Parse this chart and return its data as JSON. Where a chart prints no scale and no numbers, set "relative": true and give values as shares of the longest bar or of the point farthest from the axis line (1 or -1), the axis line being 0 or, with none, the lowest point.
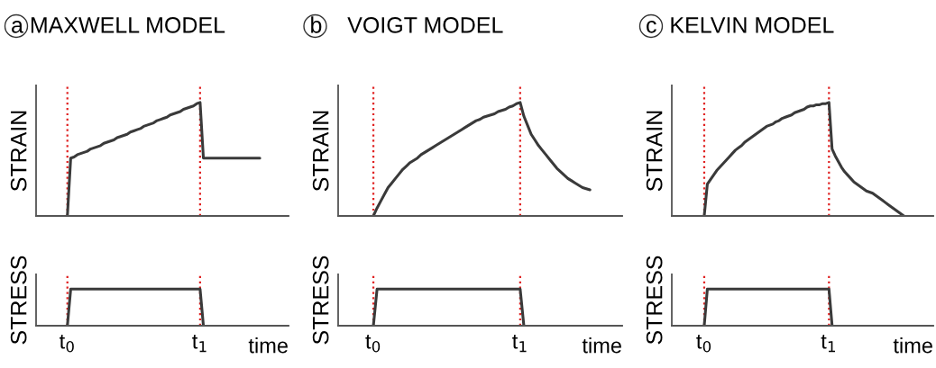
{
  "chart_data": [
    {
      "type": "line",
      "relative": true,
      "title": "a MAXWELL MODEL",
      "ylabel": "STRAIN",
      "tick_labels": false,
      "categories": [
        null,
        null,
        null,
        null,
        null,
        null,
        null,
        null,
        null,
        null,
        null,
        null,
        null,
        null,
        null,
        null,
        null,
        null,
        null,
        null,
        null,
        null,
        null,
        null,
        null,
        null,
        null,
        null,
        null,
        null,
        null,
        null,
        null,
        null,
        null,
        null,
        null,
        null,
        null,
        null,
        null,
        null,
        null,
        null,
        null,
        null,
        null,
        null,
        null,
        null,
        null,
        null,
        null,
        null,
        null,
        null,
        null,
        null,
        null
      ],
      "series": [
        {
          "color": "#3a3a3a",
          "values": [
            0,
            0.51,
            0.52,
            0.54,
            0.55,
            0.56,
            0.57,
            0.59,
            0.6,
            0.61,
            0.62,
            0.64,
            0.65,
            0.66,
            0.67,
            0.69,
            0.7,
            0.71,
            0.72,
            0.74,
            0.75,
            0.76,
            0.77,
            0.79,
            0.8,
            0.81,
            0.82,
            0.84,
            0.85,
            0.86,
            0.87,
            0.89,
            0.9,
            0.91,
            0.92,
            0.94,
            0.95,
            0.96,
            0.97,
            0.99,
            1,
            0.51,
            0.51,
            0.51,
            0.51,
            0.51,
            0.51,
            0.51,
            0.51,
            0.51,
            0.51,
            0.51,
            0.51,
            0.51,
            0.51,
            0.51,
            0.51,
            0.51,
            0.51
          ]
        }
      ]
    },
    {
      "type": "line",
      "relative": true,
      "ylabel": "STRESS",
      "xlabel": "time",
      "tick_labels": "x",
      "categories": [
        "t$_{0}$",
        null,
        null,
        null,
        null,
        null,
        null,
        null,
        null,
        null,
        null,
        null,
        null,
        null,
        null,
        null,
        null,
        null,
        null,
        null,
        null,
        null,
        null,
        null,
        null,
        null,
        null,
        null,
        null,
        null,
        null,
        null,
        null,
        null,
        null,
        null,
        null,
        null,
        null,
        null,
        "t$_{1}$",
        null,
        null,
        null,
        null,
        null,
        null,
        null,
        null,
        null,
        null,
        null,
        null,
        null,
        null,
        null,
        null,
        null,
        null
      ],
      "series": [
        {
          "color": "#3a3a3a",
          "values": [
            0,
            1,
            1,
            1,
            1,
            1,
            1,
            1,
            1,
            1,
            1,
            1,
            1,
            1,
            1,
            1,
            1,
            1,
            1,
            1,
            1,
            1,
            1,
            1,
            1,
            1,
            1,
            1,
            1,
            1,
            1,
            1,
            1,
            1,
            1,
            1,
            1,
            1,
            1,
            1,
            1,
            0,
            null,
            null,
            null,
            null,
            null,
            null,
            null,
            null,
            null,
            null,
            null,
            null,
            null,
            null,
            null,
            null,
            null
          ]
        }
      ]
    },
    {
      "type": "line",
      "relative": true,
      "title": "b    VOIGT MODEL",
      "ylabel": "STRAIN",
      "tick_labels": false,
      "categories": [
        null,
        null,
        null,
        null,
        null,
        null,
        null,
        null,
        null,
        null,
        null,
        null,
        null,
        null,
        null,
        null,
        null,
        null,
        null,
        null,
        null,
        null,
        null,
        null,
        null,
        null,
        null,
        null,
        null,
        null,
        null,
        null,
        null,
        null,
        null,
        null,
        null,
        null,
        null,
        null,
        null,
        null,
        null,
        null,
        null,
        null,
        null,
        null,
        null,
        null,
        null,
        null,
        null,
        null,
        null,
        null,
        null,
        null,
        null,
        null
      ],
      "series": [
        {
          "color": "#3a3a3a",
          "values": [
            0,
            0.07,
            0.13,
            0.19,
            0.25,
            0.29,
            0.33,
            0.37,
            0.41,
            0.44,
            0.47,
            0.49,
            0.51,
            0.54,
            0.56,
            0.58,
            0.6,
            0.62,
            0.64,
            0.66,
            0.68,
            0.7,
            0.72,
            0.74,
            0.76,
            0.78,
            0.8,
            0.82,
            0.84,
            0.85,
            0.87,
            0.88,
            0.89,
            0.9,
            0.92,
            0.93,
            0.94,
            0.96,
            0.97,
            0.99,
            1,
            0.88,
            0.8,
            0.72,
            0.67,
            0.62,
            0.58,
            0.54,
            0.5,
            0.46,
            0.42,
            0.39,
            0.36,
            0.33,
            0.31,
            0.29,
            0.27,
            0.25,
            0.24,
            0.23
          ]
        }
      ]
    },
    {
      "type": "line",
      "relative": true,
      "ylabel": "STRESS",
      "xlabel": "time",
      "tick_labels": "x",
      "categories": [
        "t$_{0}$",
        null,
        null,
        null,
        null,
        null,
        null,
        null,
        null,
        null,
        null,
        null,
        null,
        null,
        null,
        null,
        null,
        null,
        null,
        null,
        null,
        null,
        null,
        null,
        null,
        null,
        null,
        null,
        null,
        null,
        null,
        null,
        null,
        null,
        null,
        null,
        null,
        null,
        null,
        null,
        "t$_{1}$",
        null,
        null,
        null,
        null,
        null,
        null,
        null,
        null,
        null,
        null,
        null,
        null,
        null,
        null,
        null,
        null,
        null,
        null,
        null
      ],
      "series": [
        {
          "color": "#3a3a3a",
          "values": [
            0,
            1,
            1,
            1,
            1,
            1,
            1,
            1,
            1,
            1,
            1,
            1,
            1,
            1,
            1,
            1,
            1,
            1,
            1,
            1,
            1,
            1,
            1,
            1,
            1,
            1,
            1,
            1,
            1,
            1,
            1,
            1,
            1,
            1,
            1,
            1,
            1,
            1,
            1,
            1,
            1,
            0,
            null,
            null,
            null,
            null,
            null,
            null,
            null,
            null,
            null,
            null,
            null,
            null,
            null,
            null,
            null,
            null,
            null,
            null
          ]
        }
      ]
    },
    {
      "type": "line",
      "relative": true,
      "title": "c  KELVIN MODEL",
      "ylabel": "STRAIN",
      "tick_labels": false,
      "categories": [
        null,
        null,
        null,
        null,
        null,
        null,
        null,
        null,
        null,
        null,
        null,
        null,
        null,
        null,
        null,
        null,
        null,
        null,
        null,
        null,
        null,
        null,
        null,
        null,
        null,
        null,
        null,
        null,
        null,
        null,
        null,
        null,
        null,
        null,
        null,
        null,
        null,
        null,
        null,
        null,
        null,
        null,
        null,
        null,
        null,
        null,
        null,
        null,
        null,
        null,
        null,
        null,
        null,
        null,
        null,
        null,
        null,
        null,
        null,
        null,
        null,
        null,
        null,
        null,
        null
      ],
      "series": [
        {
          "color": "#3a3a3a",
          "values": [
            0,
            0.28,
            0.32,
            0.36,
            0.4,
            0.43,
            0.46,
            0.49,
            0.52,
            0.55,
            0.58,
            0.6,
            0.62,
            0.65,
            0.67,
            0.69,
            0.71,
            0.73,
            0.75,
            0.77,
            0.79,
            0.8,
            0.81,
            0.83,
            0.84,
            0.86,
            0.87,
            0.88,
            0.89,
            0.91,
            0.92,
            0.93,
            0.94,
            0.96,
            0.97,
            0.97,
            0.98,
            0.98,
            0.99,
            0.99,
            1,
            0.59,
            0.53,
            0.48,
            0.43,
            0.39,
            0.36,
            0.33,
            0.3,
            0.28,
            0.26,
            0.24,
            0.22,
            0.21,
            0.2,
            0.18,
            0.16,
            0.14,
            0.12,
            0.1,
            0.08,
            0.06,
            0.04,
            0.02,
            0
          ]
        }
      ]
    },
    {
      "type": "line",
      "relative": true,
      "ylabel": "STRESS",
      "xlabel": "time",
      "tick_labels": "x",
      "categories": [
        "t$_{0}$",
        null,
        null,
        null,
        null,
        null,
        null,
        null,
        null,
        null,
        null,
        null,
        null,
        null,
        null,
        null,
        null,
        null,
        null,
        null,
        null,
        null,
        null,
        null,
        null,
        null,
        null,
        null,
        null,
        null,
        null,
        null,
        null,
        null,
        null,
        null,
        null,
        null,
        null,
        null,
        "t$_{1}$",
        null,
        null,
        null,
        null,
        null,
        null,
        null,
        null,
        null,
        null,
        null,
        null,
        null,
        null,
        null,
        null,
        null,
        null,
        null,
        null,
        null,
        null,
        null,
        null
      ],
      "series": [
        {
          "color": "#3a3a3a",
          "values": [
            0,
            1,
            1,
            1,
            1,
            1,
            1,
            1,
            1,
            1,
            1,
            1,
            1,
            1,
            1,
            1,
            1,
            1,
            1,
            1,
            1,
            1,
            1,
            1,
            1,
            1,
            1,
            1,
            1,
            1,
            1,
            1,
            1,
            1,
            1,
            1,
            1,
            1,
            1,
            1,
            1,
            0,
            null,
            null,
            null,
            null,
            null,
            null,
            null,
            null,
            null,
            null,
            null,
            null,
            null,
            null,
            null,
            null,
            null,
            null,
            null,
            null,
            null,
            null,
            null
          ]
        }
      ]
    }
  ]
}
